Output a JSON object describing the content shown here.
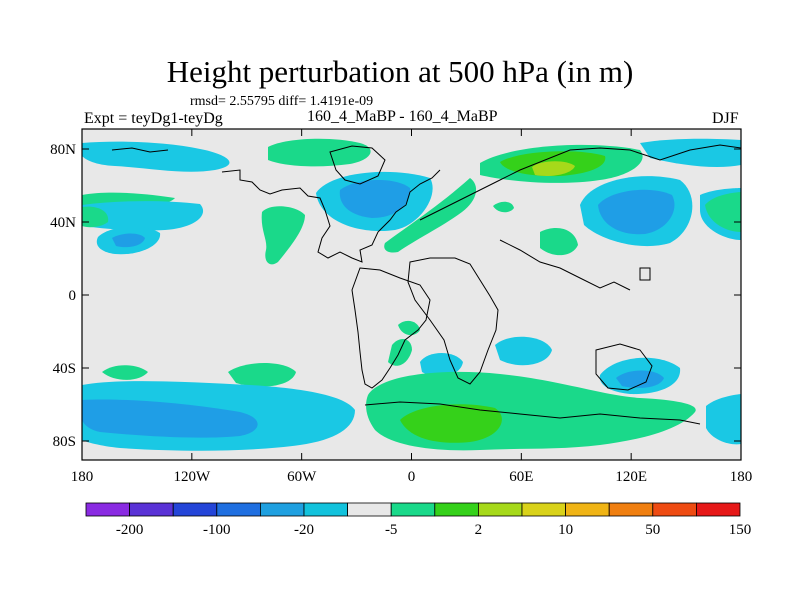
{
  "title": "Height perturbation at 500 hPa (in m)",
  "stats": "rmsd= 2.55795 diff= 1.4191e-09",
  "left_label": "Expt = teyDg1-teyDg",
  "center_label": "160_4_MaBP - 160_4_MaBP",
  "right_label": "DJF",
  "x_ticks": [
    "180",
    "120W",
    "60W",
    "0",
    "60E",
    "120E",
    "180"
  ],
  "y_ticks": [
    "80N",
    "40N",
    "0",
    "40S",
    "80S"
  ],
  "colorbar_labels": [
    "-200",
    "-100",
    "-20",
    "-5",
    "2",
    "10",
    "50",
    "150"
  ],
  "colorbar_colors": [
    "#8a2be2",
    "#5a32d6",
    "#2445d8",
    "#1f6fe0",
    "#1fa0e0",
    "#12c2dc",
    "#e8e8e8",
    "#1ad98a",
    "#35d11a",
    "#a6d91a",
    "#d9d21a",
    "#f0b415",
    "#f07f10",
    "#ee4b12",
    "#e61818"
  ],
  "colors": {
    "map_background": "#e8e8e8",
    "light_blue": "#1ac8e4",
    "mid_blue": "#1f9ee6",
    "green": "#1ad98a",
    "bright_green": "#35d11a",
    "yellow_green": "#a6d91a"
  }
}
